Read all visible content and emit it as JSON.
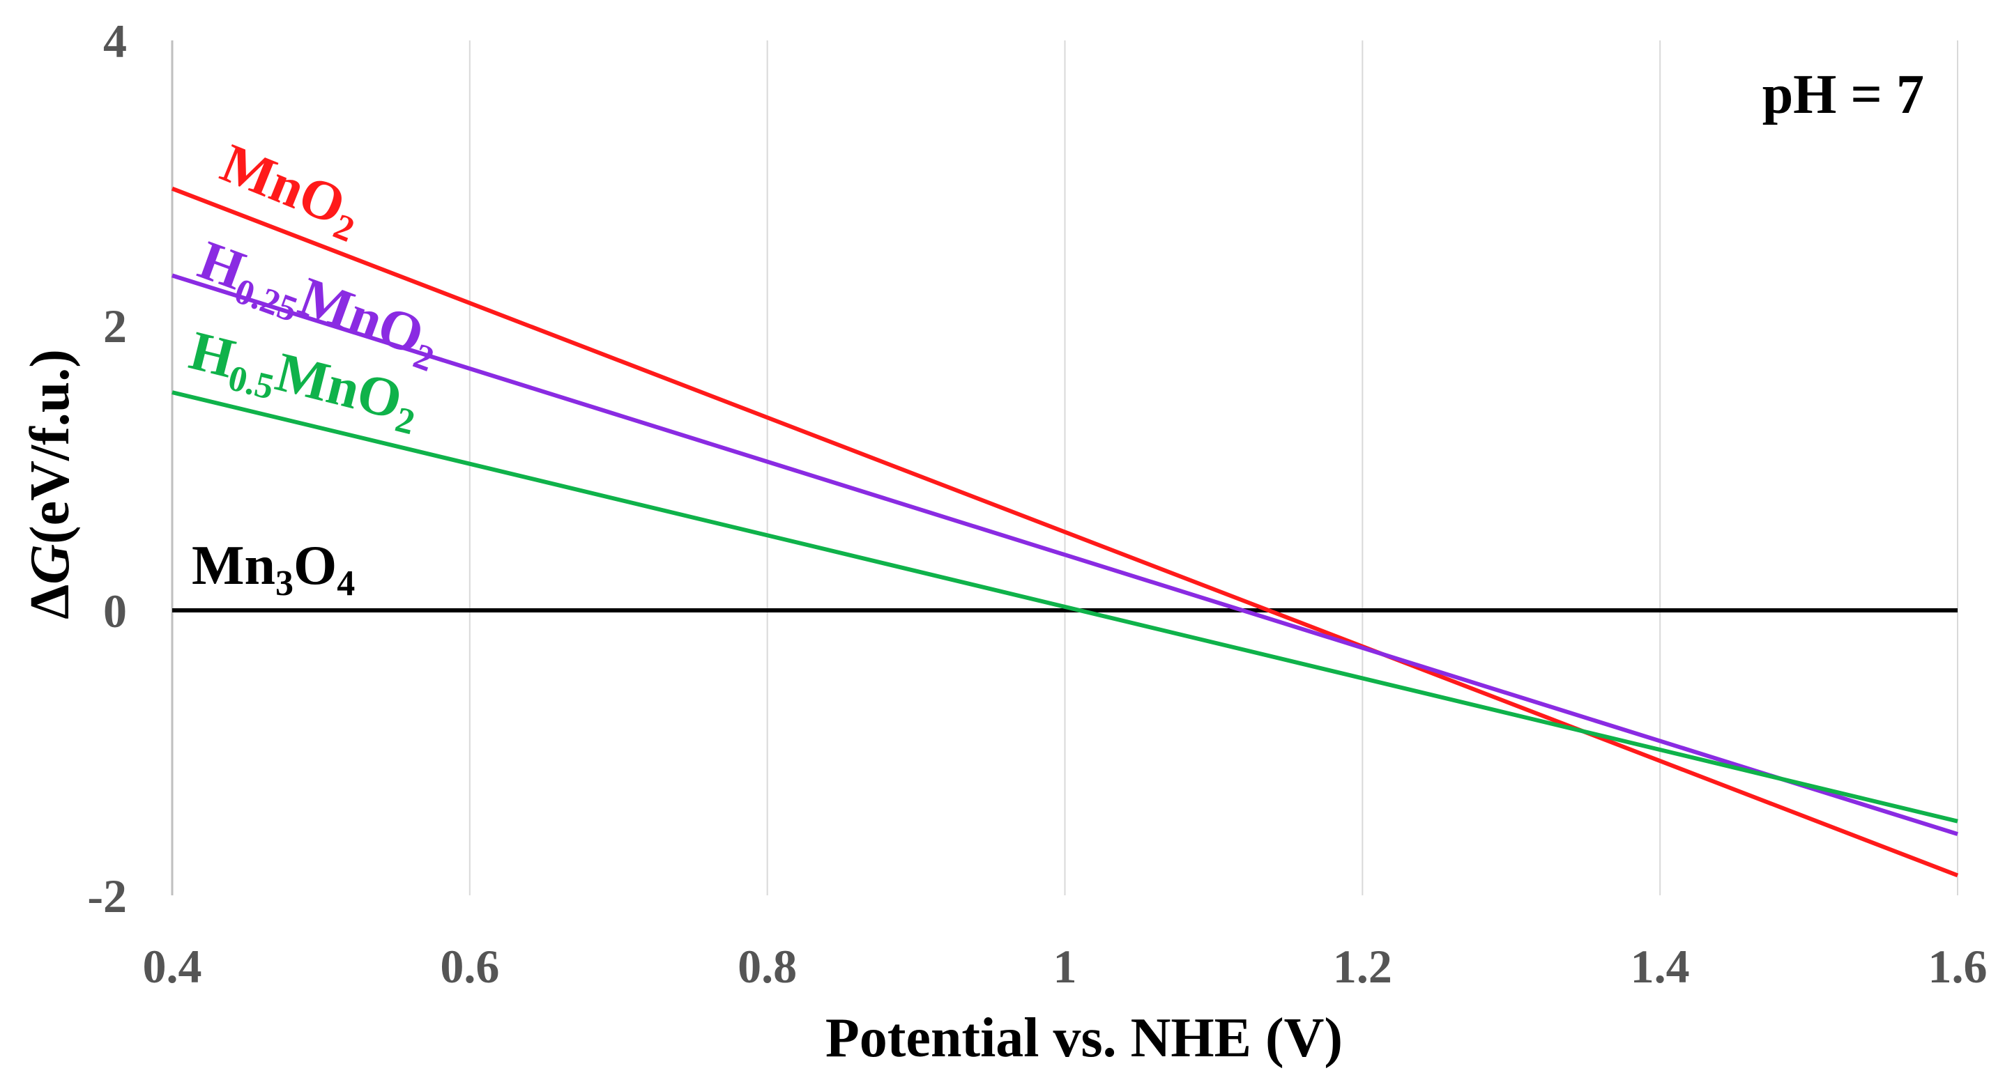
{
  "chart_data": {
    "type": "line",
    "title": "",
    "xlabel": "Potential vs. NHE (V)",
    "ylabel_prefix": "Δ",
    "ylabel_italic": "G",
    "ylabel_suffix": "(eV/f.u.)",
    "xlim": [
      0.4,
      1.6
    ],
    "ylim": [
      -2,
      4
    ],
    "xticks": [
      0.4,
      0.6,
      0.8,
      1.0,
      1.2,
      1.4,
      1.6
    ],
    "xtick_labels": [
      "0.4",
      "0.6",
      "0.8",
      "1",
      "1.2",
      "1.4",
      "1.6"
    ],
    "yticks": [
      -2,
      0,
      2,
      4
    ],
    "ytick_labels": [
      "-2",
      "0",
      "2",
      "4"
    ],
    "grid": "vertical",
    "annotation": "pH = 7",
    "series": [
      {
        "id": "mn3o4",
        "label_main": "Mn",
        "label_sub1": "3",
        "label_mid": "O",
        "label_sub2": "4",
        "color": "#000000",
        "x": [
          0.4,
          1.6
        ],
        "y": [
          0.0,
          0.0
        ]
      },
      {
        "id": "mno2",
        "label_main": "MnO",
        "label_sub1": "2",
        "label_mid": "",
        "label_sub2": "",
        "color": "#ff1a1a",
        "x": [
          0.4,
          1.6
        ],
        "y": [
          2.96,
          -1.86
        ]
      },
      {
        "id": "h025mno2",
        "label_main": "H",
        "label_sub1": "0.25",
        "label_mid": "MnO",
        "label_sub2": "2",
        "color": "#8a2be2",
        "x": [
          0.4,
          1.6
        ],
        "y": [
          2.35,
          -1.57
        ]
      },
      {
        "id": "h05mno2",
        "label_main": "H",
        "label_sub1": "0.5",
        "label_mid": "MnO",
        "label_sub2": "2",
        "color": "#0fb24a",
        "x": [
          0.4,
          1.6
        ],
        "y": [
          1.53,
          -1.48
        ]
      }
    ]
  }
}
